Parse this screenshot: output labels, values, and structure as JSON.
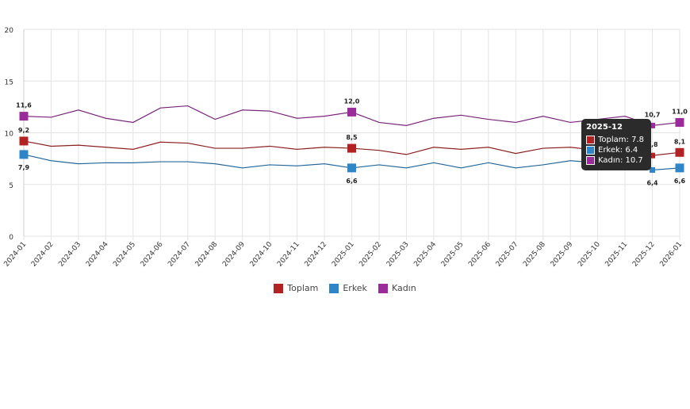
{
  "chart_data": {
    "type": "line",
    "x": [
      "2024-01",
      "2024-02",
      "2024-03",
      "2024-04",
      "2024-05",
      "2024-06",
      "2024-07",
      "2024-08",
      "2024-09",
      "2024-10",
      "2024-11",
      "2024-12",
      "2025-01",
      "2025-02",
      "2025-03",
      "2025-04",
      "2025-05",
      "2025-06",
      "2025-07",
      "2025-08",
      "2025-09",
      "2025-10",
      "2025-11",
      "2025-12",
      "2026-01"
    ],
    "ylim": [
      0,
      20
    ],
    "yticks": [
      "0",
      "5",
      "10",
      "15",
      "20"
    ],
    "grid": true,
    "legend_position": "bottom",
    "series": [
      {
        "name": "Toplam",
        "color": "#b22222",
        "values": [
          9.2,
          8.7,
          8.8,
          8.6,
          8.4,
          9.1,
          9.0,
          8.5,
          8.5,
          8.7,
          8.4,
          8.6,
          8.5,
          8.3,
          7.9,
          8.6,
          8.4,
          8.6,
          8.0,
          8.5,
          8.6,
          8.3,
          8.6,
          7.8,
          8.1
        ]
      },
      {
        "name": "Erkek",
        "color": "#2e86c8",
        "values": [
          7.9,
          7.3,
          7.0,
          7.1,
          7.1,
          7.2,
          7.2,
          7.0,
          6.6,
          6.9,
          6.8,
          7.0,
          6.6,
          6.9,
          6.6,
          7.1,
          6.6,
          7.1,
          6.6,
          6.9,
          7.3,
          7.1,
          7.1,
          6.4,
          6.6
        ]
      },
      {
        "name": "Kadın",
        "color": "#9b2a9b",
        "values": [
          11.6,
          11.5,
          12.2,
          11.4,
          11.0,
          12.4,
          12.6,
          11.3,
          12.2,
          12.1,
          11.4,
          11.6,
          12.0,
          11.0,
          10.7,
          11.4,
          11.7,
          11.3,
          11.0,
          11.6,
          11.0,
          11.3,
          11.6,
          10.7,
          11.0
        ]
      }
    ],
    "data_labels": {
      "0": [
        "9,2",
        "7,9",
        "11,6"
      ],
      "12": [
        "8,5",
        "6,6",
        "12,0"
      ],
      "23": [
        "7,8",
        "6,4",
        "10,7"
      ],
      "24": [
        "8,1",
        "6,6",
        "11,0"
      ]
    }
  },
  "tooltip": {
    "title": "2025-12",
    "rows": [
      "Toplam: 7.8",
      "Erkek: 6.4",
      "Kadın: 10.7"
    ]
  },
  "legend": [
    "Toplam",
    "Erkek",
    "Kadın"
  ]
}
